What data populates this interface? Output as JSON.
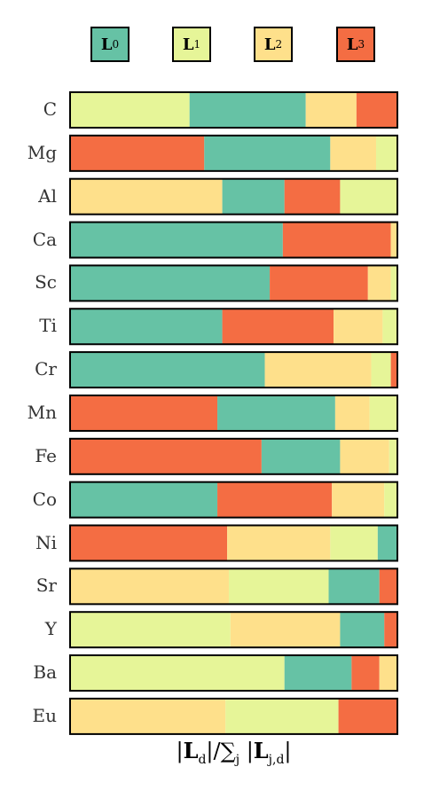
{
  "chart_data": {
    "type": "bar",
    "orientation": "horizontal",
    "stacked": true,
    "normalized": true,
    "xlabel": "|Ld|/∑j |Lj,d|",
    "legend": {
      "placement": "top",
      "entries": [
        {
          "key": "L0",
          "base": "L",
          "sub": "0",
          "color": "#66c2a5"
        },
        {
          "key": "L1",
          "base": "L",
          "sub": "1",
          "color": "#e6f598"
        },
        {
          "key": "L2",
          "base": "L",
          "sub": "2",
          "color": "#fee08b"
        },
        {
          "key": "L3",
          "base": "L",
          "sub": "3",
          "color": "#f46d43"
        }
      ]
    },
    "categories": [
      "C",
      "Mg",
      "Al",
      "Ca",
      "Sc",
      "Ti",
      "Cr",
      "Mn",
      "Fe",
      "Co",
      "Ni",
      "Sr",
      "Y",
      "Ba",
      "Eu"
    ],
    "bars": [
      {
        "category": "C",
        "segments": [
          {
            "series": "L1",
            "value": 0.365
          },
          {
            "series": "L0",
            "value": 0.355
          },
          {
            "series": "L2",
            "value": 0.155
          },
          {
            "series": "L3",
            "value": 0.125
          }
        ]
      },
      {
        "category": "Mg",
        "segments": [
          {
            "series": "L3",
            "value": 0.41
          },
          {
            "series": "L0",
            "value": 0.385
          },
          {
            "series": "L2",
            "value": 0.14
          },
          {
            "series": "L1",
            "value": 0.065
          }
        ]
      },
      {
        "category": "Al",
        "segments": [
          {
            "series": "L2",
            "value": 0.465
          },
          {
            "series": "L0",
            "value": 0.19
          },
          {
            "series": "L3",
            "value": 0.17
          },
          {
            "series": "L1",
            "value": 0.175
          }
        ]
      },
      {
        "category": "Ca",
        "segments": [
          {
            "series": "L0",
            "value": 0.65
          },
          {
            "series": "L3",
            "value": 0.33
          },
          {
            "series": "L2",
            "value": 0.02
          }
        ]
      },
      {
        "category": "Sc",
        "segments": [
          {
            "series": "L0",
            "value": 0.61
          },
          {
            "series": "L3",
            "value": 0.3
          },
          {
            "series": "L2",
            "value": 0.07
          },
          {
            "series": "L1",
            "value": 0.02
          }
        ]
      },
      {
        "category": "Ti",
        "segments": [
          {
            "series": "L0",
            "value": 0.465
          },
          {
            "series": "L3",
            "value": 0.34
          },
          {
            "series": "L2",
            "value": 0.15
          },
          {
            "series": "L1",
            "value": 0.045
          }
        ]
      },
      {
        "category": "Cr",
        "segments": [
          {
            "series": "L0",
            "value": 0.595
          },
          {
            "series": "L2",
            "value": 0.325
          },
          {
            "series": "L1",
            "value": 0.06
          },
          {
            "series": "L3",
            "value": 0.02
          }
        ]
      },
      {
        "category": "Mn",
        "segments": [
          {
            "series": "L3",
            "value": 0.45
          },
          {
            "series": "L0",
            "value": 0.36
          },
          {
            "series": "L2",
            "value": 0.105
          },
          {
            "series": "L1",
            "value": 0.085
          }
        ]
      },
      {
        "category": "Fe",
        "segments": [
          {
            "series": "L3",
            "value": 0.585
          },
          {
            "series": "L0",
            "value": 0.24
          },
          {
            "series": "L2",
            "value": 0.15
          },
          {
            "series": "L1",
            "value": 0.025
          }
        ]
      },
      {
        "category": "Co",
        "segments": [
          {
            "series": "L0",
            "value": 0.45
          },
          {
            "series": "L3",
            "value": 0.35
          },
          {
            "series": "L2",
            "value": 0.16
          },
          {
            "series": "L1",
            "value": 0.04
          }
        ]
      },
      {
        "category": "Ni",
        "segments": [
          {
            "series": "L3",
            "value": 0.48
          },
          {
            "series": "L2",
            "value": 0.315
          },
          {
            "series": "L1",
            "value": 0.145
          },
          {
            "series": "L0",
            "value": 0.06
          }
        ]
      },
      {
        "category": "Sr",
        "segments": [
          {
            "series": "L2",
            "value": 0.485
          },
          {
            "series": "L1",
            "value": 0.305
          },
          {
            "series": "L0",
            "value": 0.155
          },
          {
            "series": "L3",
            "value": 0.055
          }
        ]
      },
      {
        "category": "Y",
        "segments": [
          {
            "series": "L1",
            "value": 0.49
          },
          {
            "series": "L2",
            "value": 0.335
          },
          {
            "series": "L0",
            "value": 0.135
          },
          {
            "series": "L3",
            "value": 0.04
          }
        ]
      },
      {
        "category": "Ba",
        "segments": [
          {
            "series": "L1",
            "value": 0.655
          },
          {
            "series": "L0",
            "value": 0.205
          },
          {
            "series": "L3",
            "value": 0.085
          },
          {
            "series": "L2",
            "value": 0.055
          }
        ]
      },
      {
        "category": "Eu",
        "segments": [
          {
            "series": "L2",
            "value": 0.475
          },
          {
            "series": "L1",
            "value": 0.345
          },
          {
            "series": "L3",
            "value": 0.18
          }
        ]
      }
    ]
  }
}
